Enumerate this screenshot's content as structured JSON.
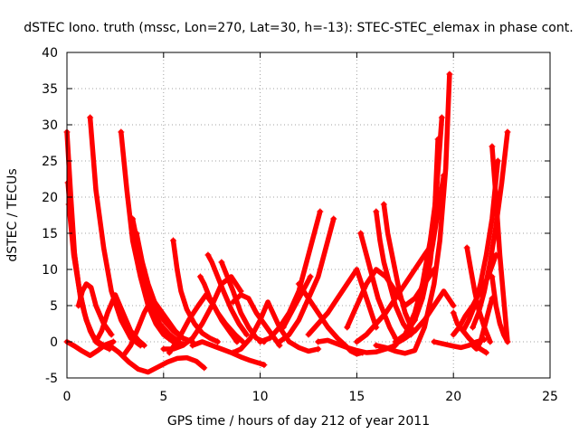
{
  "chart_data": {
    "type": "line",
    "title": "dSTEC Iono. truth (mssc, Lon=270, Lat=30, h=-13): STEC-STEC_elemax in phase cont.",
    "xlabel": "GPS time / hours of day 212 of year 2011",
    "ylabel": "dSTEC  / TECUs",
    "xlim": [
      0,
      25
    ],
    "ylim": [
      -5,
      40
    ],
    "xticks": [
      "0",
      "5",
      "10",
      "15",
      "20",
      "25"
    ],
    "yticks": [
      "-5",
      "0",
      "5",
      "10",
      "15",
      "20",
      "25",
      "30",
      "35",
      "40"
    ],
    "grid": true,
    "legend": "none",
    "marker": "+",
    "color": "#ff0000",
    "series": [
      {
        "x": [
          0.0,
          0.2,
          0.4,
          0.7,
          1.0,
          1.3,
          1.6,
          1.9,
          2.2
        ],
        "values": [
          29,
          20,
          12,
          6,
          3,
          1,
          0,
          -0.5,
          -0.8
        ]
      },
      {
        "x": [
          0.05,
          0.3,
          0.6,
          0.9,
          1.2,
          1.5,
          1.8
        ],
        "values": [
          22,
          14,
          8,
          4,
          1.5,
          0,
          -0.6
        ]
      },
      {
        "x": [
          0.1,
          0.35,
          0.65,
          1.0,
          1.4,
          1.8,
          2.2
        ],
        "values": [
          19,
          12,
          7,
          3,
          0.5,
          -0.5,
          -1
        ]
      },
      {
        "x": [
          1.2,
          1.5,
          1.9,
          2.3,
          2.8,
          3.3,
          3.8
        ],
        "values": [
          31,
          21,
          13,
          7,
          3,
          0.5,
          -0.5
        ]
      },
      {
        "x": [
          2.8,
          3.1,
          3.4,
          3.8,
          4.2,
          4.6,
          5.0,
          5.5,
          6.0
        ],
        "values": [
          29,
          21,
          14,
          9,
          5,
          2.5,
          1,
          0,
          -0.3
        ]
      },
      {
        "x": [
          3.4,
          3.7,
          4.0,
          4.4,
          4.8,
          5.3,
          5.8
        ],
        "values": [
          17,
          13,
          9,
          5,
          2.5,
          1,
          0
        ]
      },
      {
        "x": [
          3.6,
          3.9,
          4.2,
          4.6,
          5.0,
          5.5,
          6.0,
          6.5
        ],
        "values": [
          15,
          11,
          8,
          5,
          3,
          1.5,
          0.5,
          0
        ]
      },
      {
        "x": [
          0.0,
          0.4,
          0.8,
          1.2,
          1.6,
          2.0,
          2.4
        ],
        "values": [
          0,
          -0.6,
          -1.3,
          -1.9,
          -1.2,
          -0.4,
          0
        ]
      },
      {
        "x": [
          0.6,
          0.8,
          1.0,
          1.25,
          1.5,
          1.9,
          2.3
        ],
        "values": [
          5,
          7,
          8,
          7.5,
          5,
          2.5,
          1
        ]
      },
      {
        "x": [
          1.5,
          1.8,
          2.1,
          2.5,
          2.9,
          3.3,
          3.7,
          4.0
        ],
        "values": [
          0,
          1.5,
          4,
          6.5,
          4,
          1.5,
          0.2,
          -0.5
        ]
      },
      {
        "x": [
          2.2,
          2.7,
          3.2,
          3.7,
          4.2,
          4.7,
          5.2,
          5.7,
          6.2,
          6.7,
          7.1
        ],
        "values": [
          -0.5,
          -1.5,
          -2.8,
          -3.8,
          -4.2,
          -3.5,
          -2.8,
          -2.3,
          -2.2,
          -2.7,
          -3.6
        ]
      },
      {
        "x": [
          2.9,
          3.3,
          3.7,
          4.0,
          4.4,
          4.8,
          5.2,
          5.6,
          6.0
        ],
        "values": [
          -2,
          -0.5,
          2,
          4,
          6,
          4.5,
          3,
          1.5,
          0.5
        ]
      },
      {
        "x": [
          5.5,
          5.7,
          5.9,
          6.2,
          6.6,
          7.0,
          7.4,
          7.8
        ],
        "values": [
          14,
          10,
          7,
          4.5,
          2.5,
          1.2,
          0.5,
          0
        ]
      },
      {
        "x": [
          6.9,
          7.1,
          7.4,
          7.8,
          8.2,
          8.7,
          9.1
        ],
        "values": [
          9,
          8,
          6,
          4,
          2.5,
          1,
          0
        ]
      },
      {
        "x": [
          7.3,
          7.5,
          7.8,
          8.1,
          8.5,
          8.9,
          9.3
        ],
        "values": [
          12,
          11,
          9,
          7,
          4.5,
          2.5,
          1
        ]
      },
      {
        "x": [
          5.3,
          5.8,
          6.3,
          6.8,
          7.2,
          7.6,
          8.0,
          8.4,
          8.8
        ],
        "values": [
          -1.5,
          0.5,
          3,
          5,
          6.5,
          5,
          3,
          1.5,
          0
        ]
      },
      {
        "x": [
          5.0,
          5.5,
          6.0,
          6.5,
          7.0,
          7.5,
          8.0,
          8.5,
          9.0
        ],
        "values": [
          -1,
          -1,
          -0.5,
          0.5,
          2.5,
          5,
          8,
          9,
          7
        ]
      },
      {
        "x": [
          8.0,
          8.3,
          8.6,
          9.0,
          9.4,
          9.8,
          10.2
        ],
        "values": [
          11,
          9,
          7,
          4,
          2,
          0.5,
          0
        ]
      },
      {
        "x": [
          8.6,
          9.0,
          9.4,
          9.8,
          10.2,
          10.6,
          11.0
        ],
        "values": [
          5.5,
          6.5,
          6,
          4,
          2.5,
          1,
          -0.5
        ]
      },
      {
        "x": [
          6.5,
          7.0,
          7.5,
          8.0,
          8.5,
          9.0,
          9.5,
          10.0,
          10.2
        ],
        "values": [
          -0.5,
          0,
          -0.5,
          -1,
          -1.5,
          -2.1,
          -2.6,
          -3,
          -3.2
        ]
      },
      {
        "x": [
          8.6,
          9.0,
          9.5,
          10.0,
          10.4,
          11.0,
          11.5,
          12.0,
          12.5,
          13.0
        ],
        "values": [
          -1.5,
          -1,
          0.5,
          3,
          5.5,
          2,
          0,
          -0.8,
          -1.3,
          -1
        ]
      },
      {
        "x": [
          10.0,
          10.5,
          11.0,
          11.5,
          12.0,
          12.3,
          12.6,
          12.9,
          13.1
        ],
        "values": [
          0,
          0.5,
          2,
          4,
          7,
          10,
          13,
          16,
          18
        ]
      },
      {
        "x": [
          11.0,
          11.5,
          12.0,
          12.5,
          13.0,
          13.5,
          13.8
        ],
        "values": [
          0,
          1,
          3,
          6,
          9,
          14,
          17
        ]
      },
      {
        "x": [
          11.2,
          11.5,
          11.8,
          12.1,
          12.4,
          12.6
        ],
        "values": [
          2,
          3.5,
          5,
          6.5,
          8,
          9
        ]
      },
      {
        "x": [
          12.0,
          12.5,
          13.0,
          13.5,
          14.0,
          14.4,
          14.7,
          15.0,
          15.3
        ],
        "values": [
          8,
          6,
          4,
          2,
          0.5,
          -0.5,
          -1.3,
          -1.7,
          -1.5
        ]
      },
      {
        "x": [
          12.5,
          13.0,
          13.5,
          14.0,
          14.5,
          15.0,
          15.5,
          16.0
        ],
        "values": [
          1,
          2.5,
          4,
          6,
          8,
          10,
          6,
          2
        ]
      },
      {
        "x": [
          13.0,
          13.5,
          14.0,
          14.5,
          15.0,
          15.5,
          16.0,
          16.5,
          17.0
        ],
        "values": [
          0,
          0.2,
          -0.3,
          -0.8,
          -1.2,
          -1.5,
          -1.4,
          -1.0,
          -0.5
        ]
      },
      {
        "x": [
          15.2,
          15.5,
          15.8,
          16.1,
          16.4,
          16.7,
          17.0
        ],
        "values": [
          15,
          12,
          9,
          6,
          4,
          2,
          0.5
        ]
      },
      {
        "x": [
          16.0,
          16.2,
          16.4,
          16.7,
          17.0,
          17.4,
          17.8
        ],
        "values": [
          18,
          14,
          11,
          8,
          5,
          2.5,
          1
        ]
      },
      {
        "x": [
          16.4,
          16.6,
          16.9,
          17.2,
          17.5,
          17.9
        ],
        "values": [
          19,
          15,
          11,
          7,
          4,
          1.5
        ]
      },
      {
        "x": [
          14.5,
          15.0,
          15.5,
          16.0,
          16.5,
          17.0,
          17.5,
          18.0,
          18.5,
          19.0
        ],
        "values": [
          2,
          5,
          8,
          10,
          9,
          7,
          5,
          6,
          8,
          10
        ]
      },
      {
        "x": [
          15.0,
          15.5,
          16.0,
          16.5,
          17.0,
          17.5,
          18.0,
          18.5,
          18.9
        ],
        "values": [
          0,
          1,
          2.5,
          4,
          6,
          8,
          10,
          12,
          13.5
        ]
      },
      {
        "x": [
          16.0,
          16.5,
          17.0,
          17.5,
          18.0,
          18.5,
          19.0,
          19.3,
          19.6,
          19.8
        ],
        "values": [
          -0.5,
          -0.8,
          -1.3,
          -1.6,
          -1.2,
          2,
          8,
          14,
          24,
          37
        ]
      },
      {
        "x": [
          17.0,
          17.5,
          18.0,
          18.4,
          18.8,
          19.0,
          19.2
        ],
        "values": [
          0,
          1,
          3,
          6,
          11,
          16,
          28
        ]
      },
      {
        "x": [
          17.5,
          18.0,
          18.4,
          18.8,
          19.1,
          19.4
        ],
        "values": [
          1,
          4,
          8,
          14,
          20,
          31
        ]
      },
      {
        "x": [
          18.0,
          18.3,
          18.6,
          18.9,
          19.2,
          19.5
        ],
        "values": [
          3,
          6,
          9,
          13,
          18,
          23
        ]
      },
      {
        "x": [
          17.0,
          17.5,
          18.0,
          18.5,
          19.0,
          19.5,
          20.0
        ],
        "values": [
          -0.3,
          0.5,
          1.5,
          3,
          5,
          7,
          5
        ]
      },
      {
        "x": [
          19.0,
          19.5,
          20.0,
          20.4,
          20.8,
          21.2,
          21.6
        ],
        "values": [
          0,
          -0.3,
          -0.6,
          -0.8,
          -0.5,
          0,
          0.3
        ]
      },
      {
        "x": [
          20.0,
          20.3,
          20.6,
          21.0,
          21.4,
          21.8,
          22.2
        ],
        "values": [
          1,
          2,
          3.5,
          5,
          7,
          9,
          12
        ]
      },
      {
        "x": [
          20.5,
          20.8,
          21.1,
          21.4,
          21.7,
          22.0,
          22.3
        ],
        "values": [
          1.5,
          3,
          5,
          8,
          12,
          17,
          25
        ]
      },
      {
        "x": [
          21.0,
          21.3,
          21.6,
          21.9,
          22.2,
          22.5,
          22.8
        ],
        "values": [
          2,
          4,
          7,
          11,
          16,
          22,
          29
        ]
      },
      {
        "x": [
          22.0,
          22.2,
          22.4,
          22.6,
          22.8
        ],
        "values": [
          27,
          20,
          12,
          6,
          0
        ]
      },
      {
        "x": [
          20.7,
          20.9,
          21.1,
          21.3,
          21.6,
          21.9
        ],
        "values": [
          13,
          10,
          7,
          4.5,
          2,
          0
        ]
      },
      {
        "x": [
          21.0,
          21.2,
          21.4,
          21.6,
          21.8,
          22.0
        ],
        "values": [
          -0.5,
          -1,
          0,
          2,
          4,
          6
        ]
      },
      {
        "x": [
          22.0,
          22.2,
          22.4,
          22.6,
          22.8
        ],
        "values": [
          9,
          5,
          2.5,
          1,
          0
        ]
      },
      {
        "x": [
          20.0,
          20.2,
          20.5,
          20.8,
          21.1,
          21.4,
          21.7
        ],
        "values": [
          4,
          2.5,
          1.5,
          0.5,
          -0.3,
          -1,
          -1.5
        ]
      }
    ]
  }
}
